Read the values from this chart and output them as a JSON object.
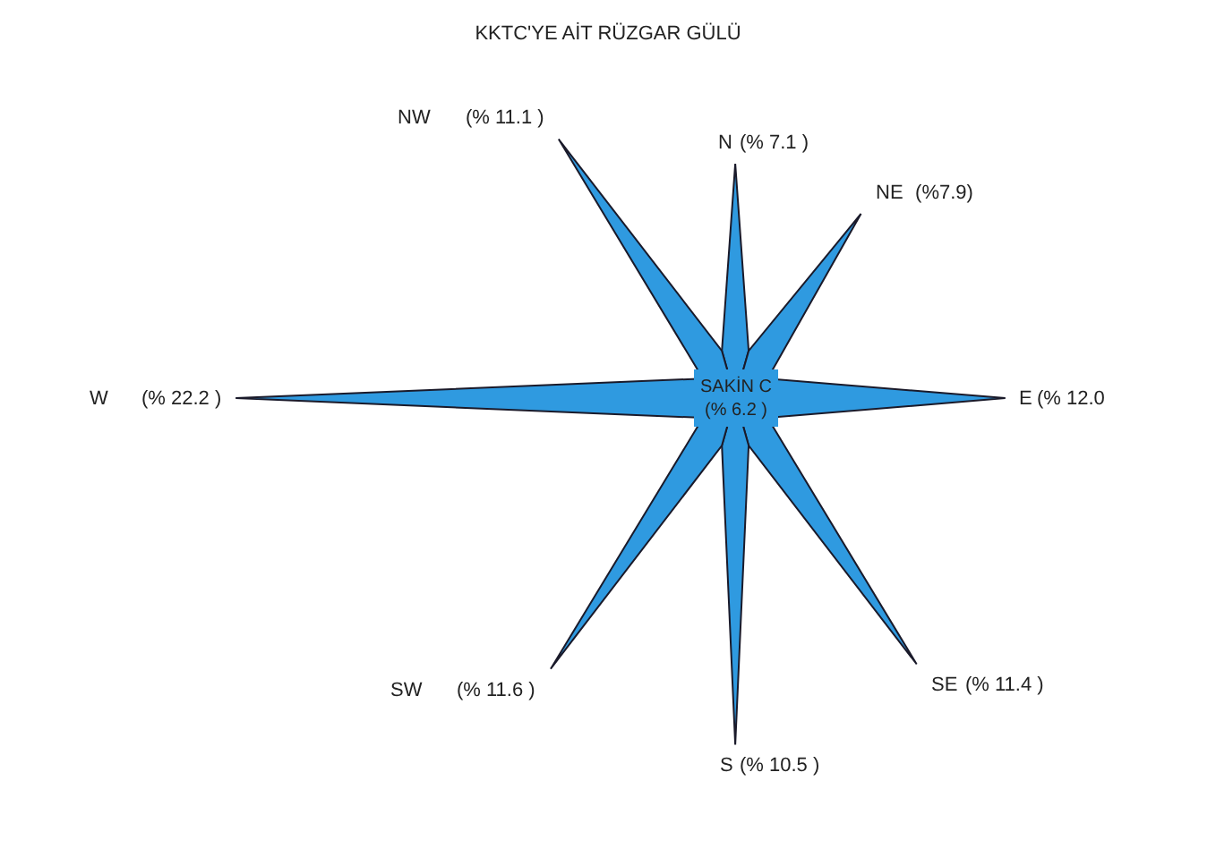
{
  "chart_data": {
    "type": "other",
    "title": "KKTC'YE AİT RÜZGAR GÜLÜ",
    "categories": [
      "N",
      "NE",
      "E",
      "SE",
      "S",
      "SW",
      "W",
      "NW"
    ],
    "values": [
      7.1,
      7.9,
      12.0,
      11.4,
      10.5,
      11.6,
      22.2,
      11.1
    ],
    "value_labels": [
      "(% 7.1 )",
      " (%7.9)",
      "(% 12.0",
      "(% 11.4 )",
      "(% 10.5 )",
      "(% 11.6 )",
      "(% 22.2 )",
      "(% 11.1 )"
    ],
    "color": "#2f9ae0",
    "annotations": [
      "SAKİN C\n(% 6.2 )"
    ]
  }
}
